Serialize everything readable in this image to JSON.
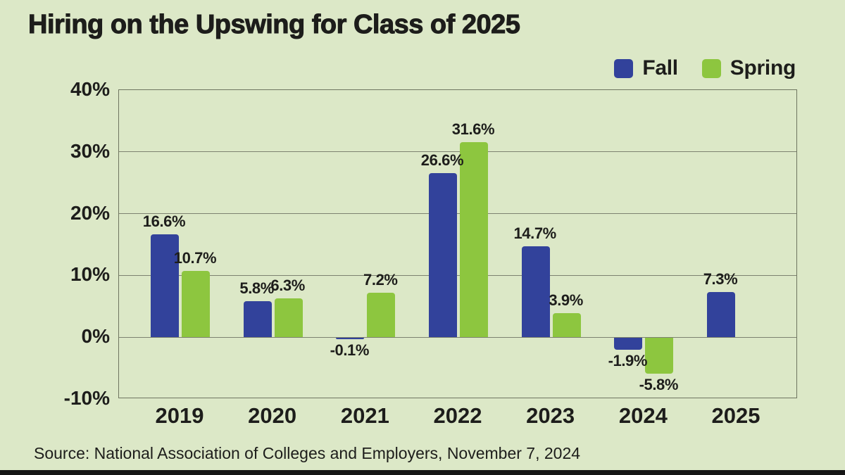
{
  "page": {
    "title": "Hiring on the Upswing for Class of 2025",
    "source_note": "Source: National Association of Colleges and Employers, November 7, 2024",
    "background_color": "#dce8c7",
    "text_color": "#1d1d1b",
    "bottom_bar_color": "#151515"
  },
  "legend": {
    "position": "top-right",
    "items": [
      {
        "label": "Fall",
        "color": "#32429b"
      },
      {
        "label": "Spring",
        "color": "#8dc63f"
      }
    ]
  },
  "chart_data": {
    "type": "bar",
    "title": "Hiring on the Upswing for Class of 2025",
    "categories": [
      "2019",
      "2020",
      "2021",
      "2022",
      "2023",
      "2024",
      "2025"
    ],
    "series": [
      {
        "name": "Fall",
        "color": "#32429b",
        "values": [
          16.6,
          5.8,
          -0.1,
          26.6,
          14.7,
          -1.9,
          7.3
        ],
        "labels": [
          "16.6%",
          "5.8%",
          "-0.1%",
          "26.6%",
          "14.7%",
          "-1.9%",
          "7.3%"
        ]
      },
      {
        "name": "Spring",
        "color": "#8dc63f",
        "values": [
          10.7,
          6.3,
          7.2,
          31.6,
          3.9,
          -5.8,
          null
        ],
        "labels": [
          "10.7%",
          "6.3%",
          "7.2%",
          "31.6%",
          "3.9%",
          "-5.8%",
          null
        ]
      }
    ],
    "y_axis": {
      "min": -10,
      "max": 40,
      "ticks": [
        40,
        30,
        20,
        10,
        0,
        -10
      ],
      "tick_labels": [
        "40%",
        "30%",
        "20%",
        "10%",
        "0%",
        "-10%"
      ]
    },
    "xlabel": "",
    "ylabel": "",
    "grid": true,
    "legend_position": "top-right",
    "source": "Source: National Association of Colleges and Employers, November 7, 2024"
  }
}
